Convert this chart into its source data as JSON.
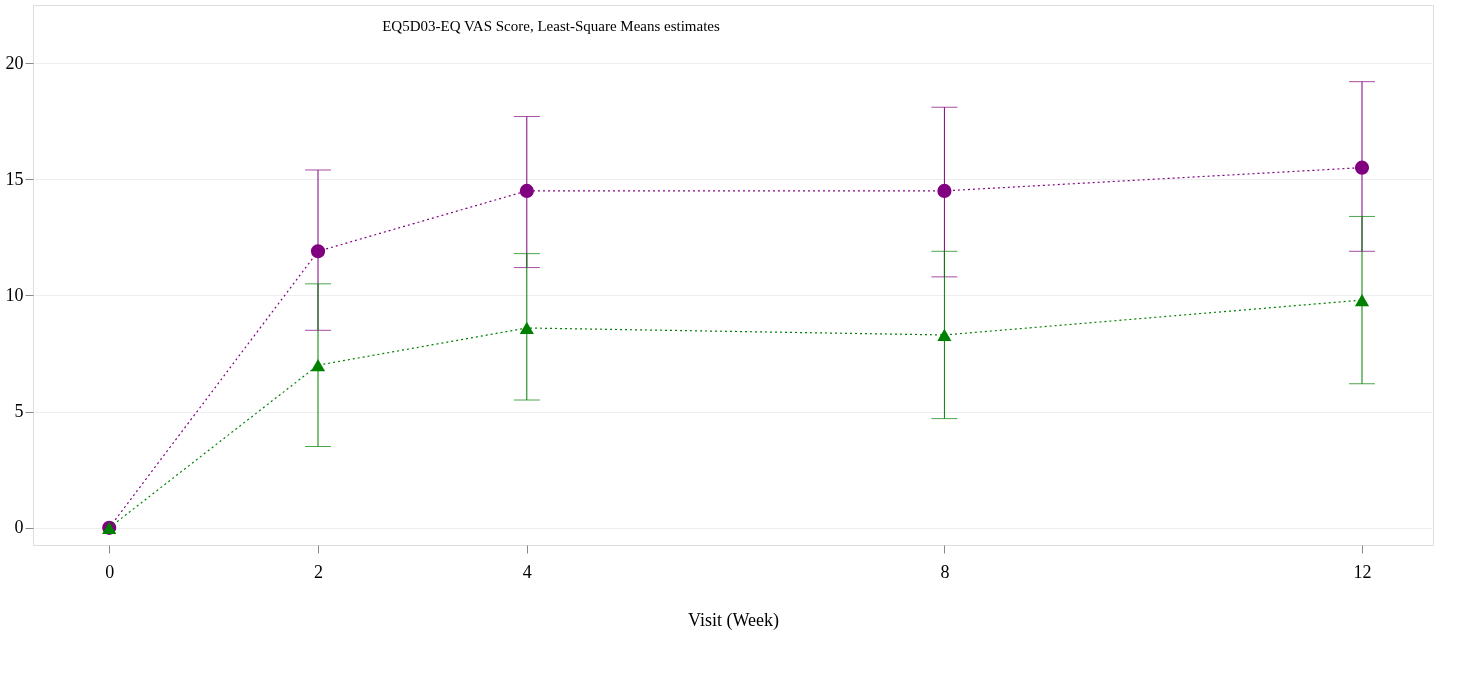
{
  "chart_data": {
    "type": "line",
    "title": "EQ5D03-EQ VAS Score, Least-Square Means estimates",
    "xlabel": "Visit (Week)",
    "x": [
      0,
      2,
      4,
      8,
      12
    ],
    "series": [
      {
        "color": "#800080",
        "marker": "circle",
        "values": [
          0,
          11.9,
          14.5,
          14.5,
          15.5
        ],
        "errors": [
          null,
          [
            8.5,
            15.4
          ],
          [
            11.2,
            17.7
          ],
          [
            10.8,
            18.1
          ],
          [
            11.9,
            19.2
          ]
        ]
      },
      {
        "color": "#008000",
        "marker": "triangle",
        "values": [
          0,
          7.0,
          8.6,
          8.3,
          9.8
        ],
        "errors": [
          null,
          [
            3.5,
            10.5
          ],
          [
            5.5,
            11.8
          ],
          [
            4.7,
            11.9
          ],
          [
            6.2,
            13.4
          ]
        ]
      }
    ],
    "xlim": [
      -0.73,
      12.68
    ],
    "xticks": [
      0,
      2,
      4,
      8,
      12
    ],
    "ylim": [
      -0.74,
      22.5
    ],
    "yticks": [
      0,
      5,
      10,
      15,
      20
    ],
    "grid": "y",
    "line_style": "dotted"
  }
}
